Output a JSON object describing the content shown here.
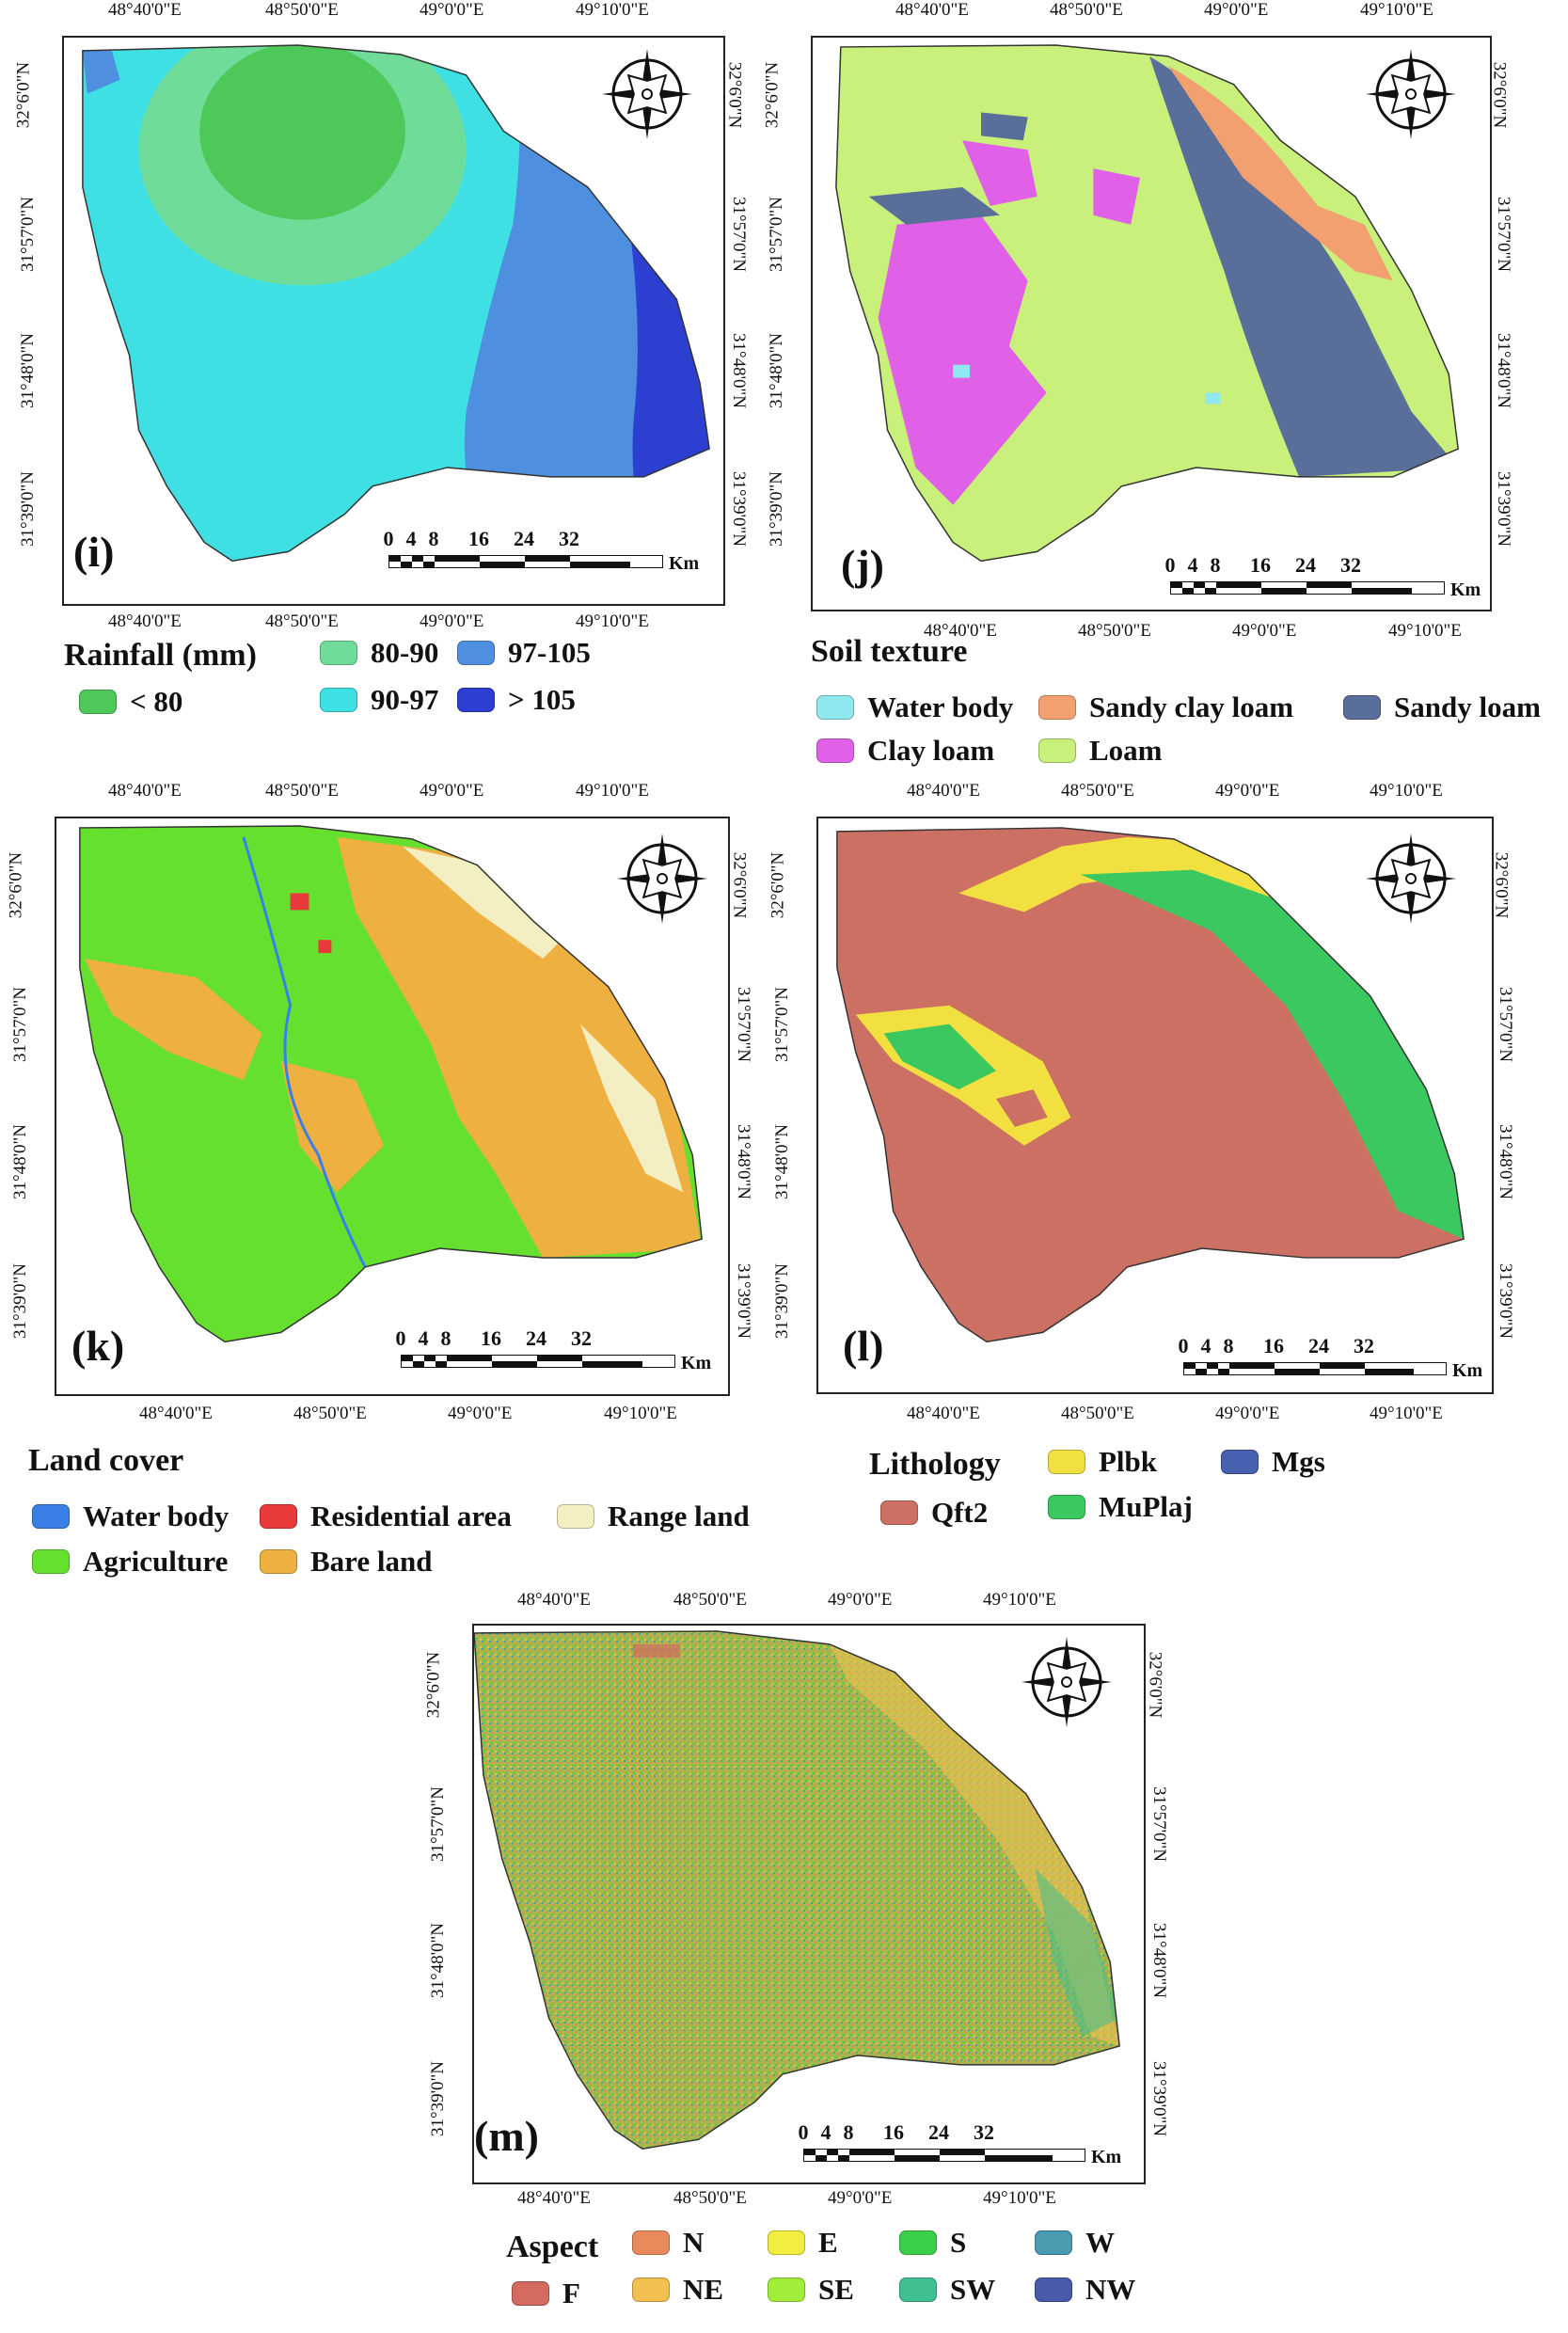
{
  "coords": {
    "lon": [
      "48°40'0\"E",
      "48°50'0\"E",
      "49°0'0\"E",
      "49°10'0\"E"
    ],
    "lat": [
      "32°6'0\"N",
      "31°57'0\"N",
      "31°48'0\"N",
      "31°39'0\"N"
    ]
  },
  "scale": {
    "ticks": [
      "0",
      "4",
      "8",
      "16",
      "24",
      "32"
    ],
    "unit": "Km"
  },
  "panels": [
    {
      "id": "i",
      "label": "(i)",
      "legend_title": "Rainfall (mm)",
      "classes": [
        {
          "label": "< 80",
          "color": "#4fc85a"
        },
        {
          "label": "80-90",
          "color": "#6fdc9a"
        },
        {
          "label": "90-97",
          "color": "#3fe0e4"
        },
        {
          "label": "97-105",
          "color": "#4f8fe0"
        },
        {
          "label": "> 105",
          "color": "#2c3fd0"
        }
      ]
    },
    {
      "id": "j",
      "label": "(j)",
      "legend_title": "Soil texture",
      "classes": [
        {
          "label": "Water body",
          "color": "#8fe8f0"
        },
        {
          "label": "Sandy clay loam",
          "color": "#f2a070"
        },
        {
          "label": "Sandy loam",
          "color": "#5a6e9a"
        },
        {
          "label": "Clay loam",
          "color": "#e060e8"
        },
        {
          "label": "Loam",
          "color": "#c8f07a"
        }
      ]
    },
    {
      "id": "k",
      "label": "(k)",
      "legend_title": "Land cover",
      "classes": [
        {
          "label": "Water body",
          "color": "#3a7fe8"
        },
        {
          "label": "Residential area",
          "color": "#e83a3a"
        },
        {
          "label": "Range land",
          "color": "#f4efc2"
        },
        {
          "label": "Agriculture",
          "color": "#66e02e"
        },
        {
          "label": "Bare land",
          "color": "#eeb040"
        }
      ]
    },
    {
      "id": "l",
      "label": "(l)",
      "legend_title": "Lithology",
      "classes": [
        {
          "label": "Plbk",
          "color": "#f2e040"
        },
        {
          "label": "Mgs",
          "color": "#4860b0"
        },
        {
          "label": "Qft2",
          "color": "#cc7064"
        },
        {
          "label": "MuPlaj",
          "color": "#3cc860"
        }
      ]
    },
    {
      "id": "m",
      "label": "(m)",
      "legend_title": "Aspect",
      "classes": [
        {
          "label": "N",
          "color": "#e88a5a"
        },
        {
          "label": "E",
          "color": "#f2ee40"
        },
        {
          "label": "S",
          "color": "#3cd04a"
        },
        {
          "label": "W",
          "color": "#4a9ab0"
        },
        {
          "label": "F",
          "color": "#d46a60"
        },
        {
          "label": "NE",
          "color": "#f2c050"
        },
        {
          "label": "SE",
          "color": "#a0ee3a"
        },
        {
          "label": "SW",
          "color": "#40c090"
        },
        {
          "label": "NW",
          "color": "#4a5aa8"
        }
      ]
    }
  ]
}
